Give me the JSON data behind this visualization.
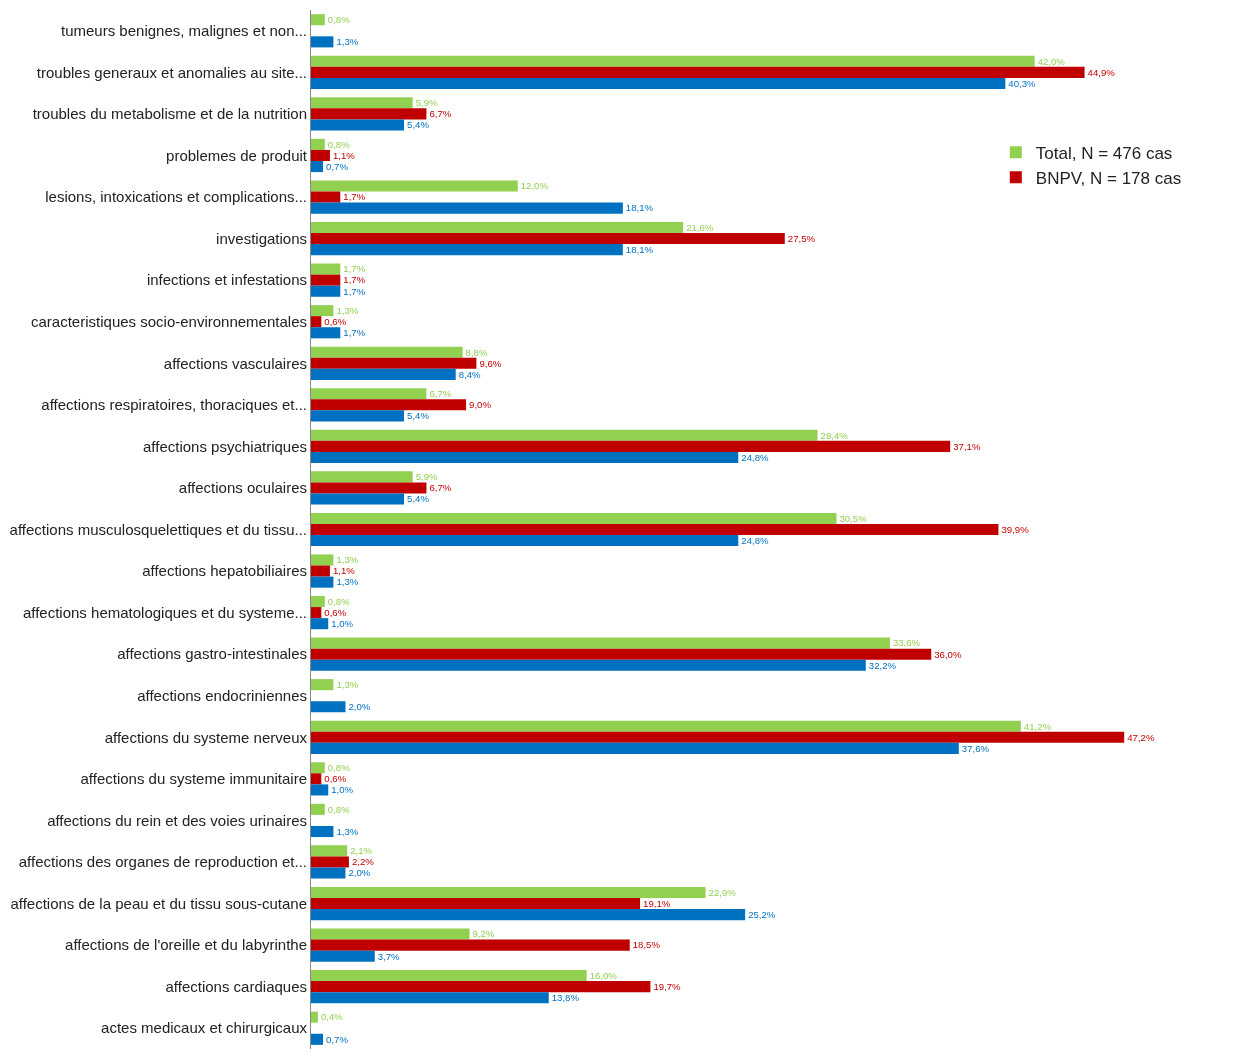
{
  "chart_data": {
    "type": "bar",
    "orientation": "horizontal",
    "legend": "top right",
    "categories": [
      "tumeurs benignes, malignes et non...",
      "troubles generaux et anomalies au site...",
      "troubles du metabolisme et de la nutrition",
      "problemes de produit",
      "lesions, intoxications et complications...",
      "investigations",
      "infections et infestations",
      "caracteristiques socio-environnementales",
      "affections vasculaires",
      "affections respiratoires, thoraciques et...",
      "affections psychiatriques",
      "affections oculaires",
      "affections musculosquelettiques et du tissu...",
      "affections hepatobiliaires",
      "affections hematologiques et du systeme...",
      "affections gastro-intestinales",
      "affections endocriniennes",
      "affections du systeme nerveux",
      "affections du systeme immunitaire",
      "affections du rein et des voies urinaires",
      "affections des organes de reproduction et...",
      "affections de la peau et du tissu sous-cutane",
      "affections de l'oreille et du labyrinthe",
      "affections cardiaques",
      "actes medicaux et chirurgicaux"
    ],
    "series": [
      {
        "name": "Total, N = 476 cas",
        "color": "#92d050",
        "values": [
          0.8,
          42.0,
          5.9,
          0.8,
          12.0,
          21.6,
          1.7,
          1.3,
          8.8,
          6.7,
          29.4,
          5.9,
          30.5,
          1.3,
          0.8,
          33.6,
          1.3,
          41.2,
          0.8,
          0.8,
          2.1,
          22.9,
          9.2,
          16.0,
          0.4
        ],
        "value_labels": [
          "0,8%",
          "42,0%",
          "5,9%",
          "0,8%",
          "12,0%",
          "21,6%",
          "1,7%",
          "1,3%",
          "8,8%",
          "6,7%",
          "29,4%",
          "5,9%",
          "30,5%",
          "1,3%",
          "0,8%",
          "33,6%",
          "1,3%",
          "41,2%",
          "0,8%",
          "0,8%",
          "2,1%",
          "22,9%",
          "9,2%",
          "16,0%",
          "0,4%"
        ]
      },
      {
        "name": "BNPV, N = 178 cas",
        "color": "#c00000",
        "values": [
          null,
          44.9,
          6.7,
          1.1,
          1.7,
          27.5,
          1.7,
          0.6,
          9.6,
          9.0,
          37.1,
          6.7,
          39.9,
          1.1,
          0.6,
          36.0,
          null,
          47.2,
          0.6,
          null,
          2.2,
          19.1,
          18.5,
          19.7,
          null
        ],
        "value_labels": [
          null,
          "44,9%",
          "6,7%",
          "1,1%",
          "1,7%",
          "27,5%",
          "1,7%",
          "0,6%",
          "9,6%",
          "9,0%",
          "37,1%",
          "6,7%",
          "39,9%",
          "1,1%",
          "0,6%",
          "36,0%",
          null,
          "47,2%",
          "0,6%",
          null,
          "2,2%",
          "19,1%",
          "18,5%",
          "19,7%",
          null
        ]
      },
      {
        "color": "#0070c0",
        "values": [
          1.3,
          40.3,
          5.4,
          0.7,
          18.1,
          18.1,
          1.7,
          1.7,
          8.4,
          5.4,
          24.8,
          5.4,
          24.8,
          1.3,
          1.0,
          32.2,
          2.0,
          37.6,
          1.0,
          1.3,
          2.0,
          25.2,
          3.7,
          13.8,
          0.7
        ],
        "value_labels": [
          "1,3%",
          "40,3%",
          "5,4%",
          "0,7%",
          "18,1%",
          "18,1%",
          "1,7%",
          "1,7%",
          "8,4%",
          "5,4%",
          "24,8%",
          "5,4%",
          "24,8%",
          "1,3%",
          "1,0%",
          "32,2%",
          "2,0%",
          "37,6%",
          "1,0%",
          "1,3%",
          "2,0%",
          "25,2%",
          "3,7%",
          "13,8%",
          "0,7%"
        ]
      }
    ]
  }
}
